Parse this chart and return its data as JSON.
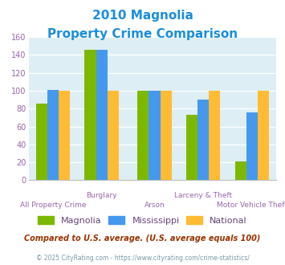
{
  "title_line1": "2010 Magnolia",
  "title_line2": "Property Crime Comparison",
  "title_color": "#1a8fdd",
  "categories": [
    "All Property Crime",
    "Burglary",
    "Arson",
    "Larceny & Theft",
    "Motor Vehicle Theft"
  ],
  "magnolia": [
    86,
    146,
    100,
    73,
    21
  ],
  "mississippi": [
    101,
    146,
    100,
    90,
    76
  ],
  "national": [
    100,
    100,
    100,
    100,
    100
  ],
  "magnolia_color": "#7db800",
  "mississippi_color": "#4499ee",
  "national_color": "#ffbb33",
  "ylim": [
    0,
    160
  ],
  "yticks": [
    0,
    20,
    40,
    60,
    80,
    100,
    120,
    140,
    160
  ],
  "plot_bg": "#ddeef5",
  "footnote1": "Compared to U.S. average. (U.S. average equals 100)",
  "footnote2": "© 2025 CityRating.com - https://www.cityrating.com/crime-statistics/",
  "footnote1_color": "#993300",
  "footnote2_color": "#7799aa",
  "xlabel_color": "#9966aa",
  "tick_color": "#9966aa",
  "legend_text_color": "#664477",
  "group_centers": [
    0.55,
    1.75,
    3.05,
    4.25,
    5.45
  ],
  "bar_width": 0.28,
  "xlim": [
    -0.05,
    6.05
  ]
}
